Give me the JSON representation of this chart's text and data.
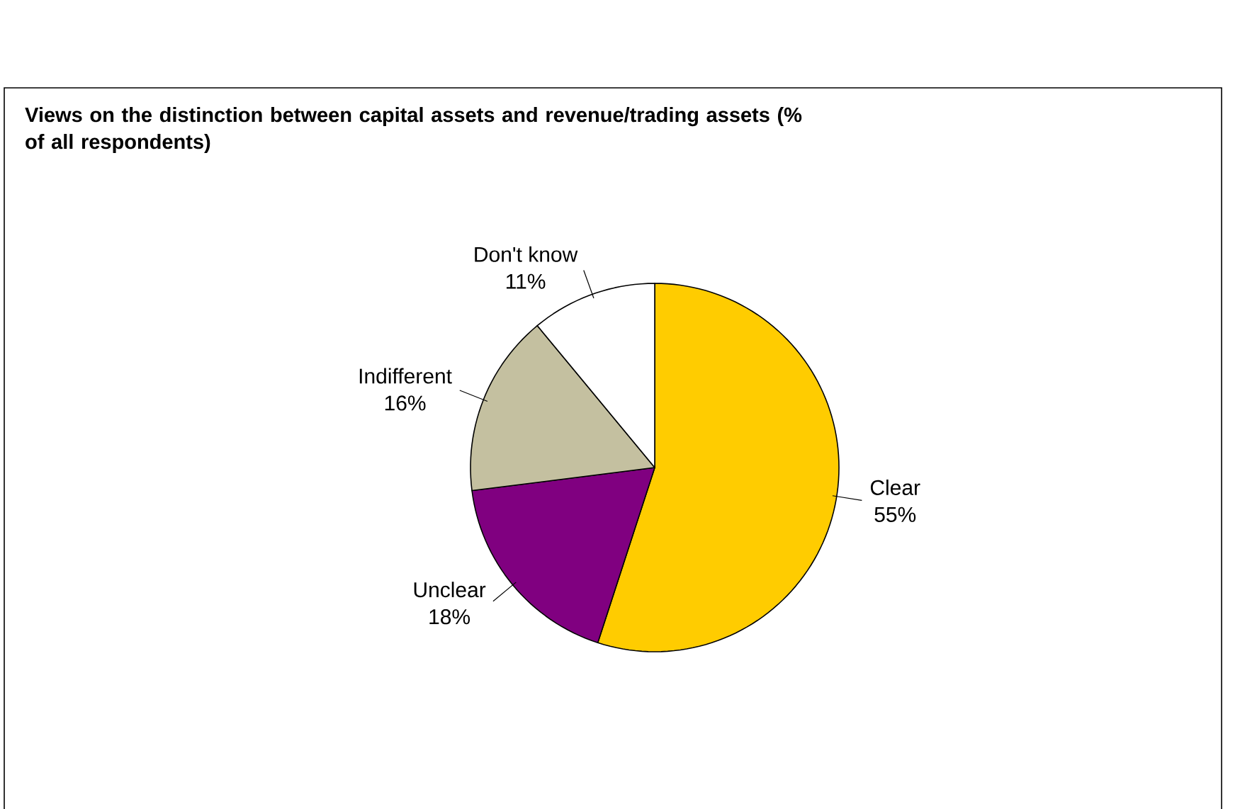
{
  "chart_data": {
    "type": "pie",
    "title": "Views on the distinction between capital assets and revenue/trading assets (% of all respondents)",
    "categories": [
      "Clear",
      "Unclear",
      "Indifferent",
      "Don't know"
    ],
    "values": [
      55,
      18,
      16,
      11
    ],
    "value_labels": [
      "55%",
      "18%",
      "16%",
      "11%"
    ],
    "colors": [
      "#ffcc00",
      "#800080",
      "#c4c0a0",
      "#ffffff"
    ]
  }
}
